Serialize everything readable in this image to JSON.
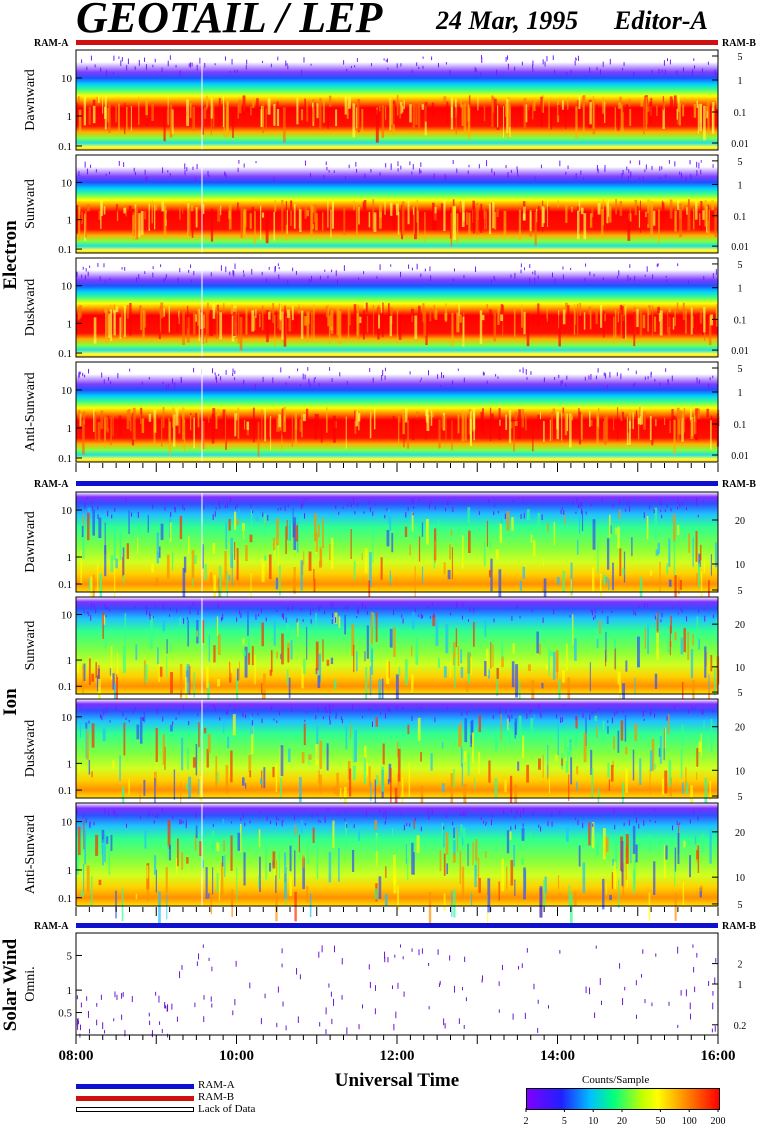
{
  "header": {
    "title": "GEOTAIL / LEP",
    "date": "24 Mar, 1995",
    "editor": "Editor-A"
  },
  "chart_data": {
    "type": "heatmap",
    "xlabel": "Universal Time",
    "x_ticks": [
      "08:00",
      "10:00",
      "12:00",
      "14:00",
      "16:00"
    ],
    "x_range_hours": [
      8,
      16
    ],
    "colorbar": {
      "title": "Counts/Sample",
      "ticks": [
        "2",
        "5",
        "10",
        "20",
        "50",
        "100",
        "200"
      ]
    },
    "legend": [
      {
        "label": "RAM-A",
        "color": "#1010d0"
      },
      {
        "label": "RAM-B",
        "color": "#d01010"
      },
      {
        "label": "Lack of Data",
        "color": "#ffffff"
      }
    ],
    "groups": [
      {
        "name": "Electron",
        "ram_left": "RAM-A",
        "ram_right": "RAM-B",
        "bar_color": "#d01010",
        "panels": [
          {
            "label": "Dawnward",
            "left_ticks": [
              "10",
              "1",
              "0.1"
            ],
            "right_ticks": [
              "5",
              "1",
              "0.1",
              "0.01"
            ]
          },
          {
            "label": "Sunward",
            "left_ticks": [
              "10",
              "1",
              "0.1"
            ],
            "right_ticks": [
              "5",
              "1",
              "0.1",
              "0.01"
            ]
          },
          {
            "label": "Duskward",
            "left_ticks": [
              "10",
              "1",
              "0.1"
            ],
            "right_ticks": [
              "5",
              "1",
              "0.1",
              "0.01"
            ]
          },
          {
            "label": "Anti-Sunward",
            "left_ticks": [
              "10",
              "1",
              "0.1"
            ],
            "right_ticks": [
              "5",
              "1",
              "0.1",
              "0.01"
            ]
          }
        ]
      },
      {
        "name": "Ion",
        "ram_left": "RAM-A",
        "ram_right": "RAM-B",
        "bar_color": "#1010d0",
        "panels": [
          {
            "label": "Dawnward",
            "left_ticks": [
              "10",
              "1",
              "0.1"
            ],
            "right_ticks": [
              "20",
              "10",
              "5"
            ]
          },
          {
            "label": "Sunward",
            "left_ticks": [
              "10",
              "1",
              "0.1"
            ],
            "right_ticks": [
              "20",
              "10",
              "5"
            ]
          },
          {
            "label": "Duskward",
            "left_ticks": [
              "10",
              "1",
              "0.1"
            ],
            "right_ticks": [
              "20",
              "10",
              "5"
            ]
          },
          {
            "label": "Anti-Sunward",
            "left_ticks": [
              "10",
              "1",
              "0.1"
            ],
            "right_ticks": [
              "20",
              "10",
              "5"
            ]
          }
        ]
      },
      {
        "name": "Solar Wind",
        "ram_left": "RAM-A",
        "ram_right": "RAM-B",
        "bar_color": "#1010d0",
        "panels": [
          {
            "label": "Omni.",
            "left_ticks": [
              "5",
              "1",
              "0.5"
            ],
            "right_ticks": [
              "2",
              "1",
              "0.2"
            ]
          }
        ]
      }
    ]
  }
}
